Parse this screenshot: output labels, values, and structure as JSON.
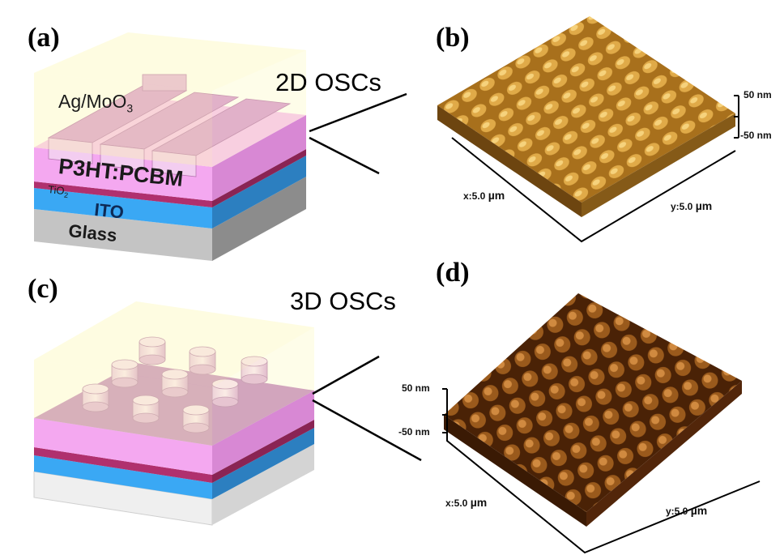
{
  "panels": {
    "a": {
      "label": "(a)"
    },
    "b": {
      "label": "(b)"
    },
    "c": {
      "label": "(c)"
    },
    "d": {
      "label": "(d)"
    }
  },
  "titles": {
    "top": "2D OSCs",
    "bottom": "3D OSCs"
  },
  "layers": {
    "electrode": "Ag/MoO",
    "electrode_sub": "3",
    "active": "P3HT:PCBM",
    "tio2": "TiO",
    "tio2_sub": "2",
    "ito": "ITO",
    "glass": "Glass"
  },
  "afm_top": {
    "z_max": "50 nm",
    "z_min": "-50 nm",
    "x_axis": "x:5.0",
    "x_unit": "µm",
    "y_axis": "y:5.0",
    "y_unit": "µm"
  },
  "afm_bottom": {
    "z_max": "50 nm",
    "z_min": "-50 nm",
    "x_axis": "x:5.0",
    "x_unit": "µm",
    "y_axis": "y:5.0",
    "y_unit": "µm"
  },
  "colors": {
    "afm_top": "#c8922e",
    "afm_bottom": "#8a4a14",
    "active_layer": "#f4a8f0",
    "tio2_layer": "#b0306e",
    "ito_layer": "#3a9df0",
    "glass_layer": "#bdbdbd"
  }
}
